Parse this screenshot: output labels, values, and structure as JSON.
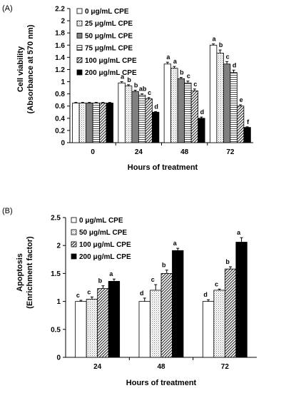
{
  "chart_data": [
    {
      "panel_label": "(A)",
      "type": "bar",
      "xlabel": "Hours of treatment",
      "ylabel": [
        "Cell viability",
        "(Absorbance at 570 nm)"
      ],
      "ylim": [
        0,
        2.2
      ],
      "yticks": [
        "0",
        "0.2",
        "0.4",
        "0.6",
        "0.8",
        "1",
        "1.2",
        "1.4",
        "1.6",
        "1.8",
        "2",
        "2.2"
      ],
      "categories": [
        "0",
        "24",
        "48",
        "72"
      ],
      "legend_position": "top-left",
      "series": [
        {
          "name": "0 μg/mL CPE",
          "pattern": "white",
          "values": [
            0.65,
            0.98,
            1.29,
            1.6
          ],
          "errors": [
            0.01,
            0.02,
            0.03,
            0.02
          ],
          "labels": [
            "",
            "a",
            "a",
            "a"
          ]
        },
        {
          "name": "25 μg/mL CPE",
          "pattern": "dots",
          "values": [
            0.65,
            0.93,
            1.22,
            1.47
          ],
          "errors": [
            0.01,
            0.02,
            0.03,
            0.05
          ],
          "labels": [
            "",
            "b",
            "a",
            "b"
          ]
        },
        {
          "name": "50 μg/mL CPE",
          "pattern": "gray",
          "values": [
            0.65,
            0.84,
            1.05,
            1.29
          ],
          "errors": [
            0.01,
            0.02,
            0.02,
            0.04
          ],
          "labels": [
            "",
            "b",
            "b",
            "c"
          ]
        },
        {
          "name": "75 μg/mL CPE",
          "pattern": "hlines",
          "values": [
            0.65,
            0.78,
            0.98,
            1.15
          ],
          "errors": [
            0.01,
            0.02,
            0.03,
            0.04
          ],
          "labels": [
            "",
            "ab",
            "c",
            "d"
          ]
        },
        {
          "name": "100 μg/mL CPE",
          "pattern": "diag",
          "values": [
            0.65,
            0.72,
            0.85,
            0.6
          ],
          "errors": [
            0.01,
            0.02,
            0.03,
            0.02
          ],
          "labels": [
            "",
            "c",
            "c",
            "e"
          ]
        },
        {
          "name": "200 μg/mL CPE",
          "pattern": "black",
          "values": [
            0.65,
            0.5,
            0.4,
            0.25
          ],
          "errors": [
            0.01,
            0.01,
            0.02,
            0.01
          ],
          "labels": [
            "",
            "d",
            "d",
            "f"
          ]
        }
      ]
    },
    {
      "panel_label": "(B)",
      "type": "bar",
      "xlabel": "Hours of treatment",
      "ylabel": [
        "Apoptosis",
        "(Enrichment factor)"
      ],
      "ylim": [
        0,
        2.5
      ],
      "yticks": [
        "0",
        "0.5",
        "1",
        "1.5",
        "2",
        "2.5"
      ],
      "categories": [
        "24",
        "48",
        "72"
      ],
      "legend_position": "top-left",
      "series": [
        {
          "name": "0 μg/mL CPE",
          "pattern": "white",
          "values": [
            1.0,
            1.0,
            1.0
          ],
          "errors": [
            0.02,
            0.06,
            0.03
          ],
          "labels": [
            "c",
            "d",
            "d"
          ]
        },
        {
          "name": "50 μg/mL CPE",
          "pattern": "dots",
          "values": [
            1.04,
            1.2,
            1.2
          ],
          "errors": [
            0.04,
            0.1,
            0.02
          ],
          "labels": [
            "c",
            "c",
            "c"
          ]
        },
        {
          "name": "100 μg/mL CPE",
          "pattern": "diag",
          "values": [
            1.23,
            1.5,
            1.58
          ],
          "errors": [
            0.05,
            0.06,
            0.04
          ],
          "labels": [
            "b",
            "b",
            "b"
          ]
        },
        {
          "name": "200 μg/mL CPE",
          "pattern": "black",
          "values": [
            1.36,
            1.91,
            2.06
          ],
          "errors": [
            0.04,
            0.04,
            0.08
          ],
          "labels": [
            "a",
            "a",
            "a"
          ]
        }
      ]
    }
  ]
}
